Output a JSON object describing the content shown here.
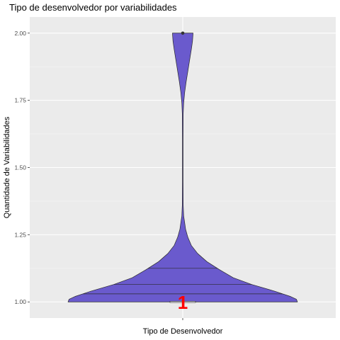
{
  "chart_data": {
    "type": "violin",
    "title": "Tipo de desenvolvedor por variabilidades",
    "xlabel": "Tipo de Desenvolvedor",
    "ylabel": "Quantidade de Variabilidades",
    "categories": [
      ""
    ],
    "ylim": [
      0.94,
      2.06
    ],
    "yticks": [
      1.0,
      1.25,
      1.5,
      1.75,
      2.0
    ],
    "ytick_labels": [
      "1.00",
      "1.25",
      "1.50",
      "1.75",
      "2.00"
    ],
    "grid": true,
    "violin": {
      "fill": "#6a5acd",
      "outline": "#2b2b2b",
      "density_profile": [
        {
          "y": 1.0,
          "half_width": 1.0
        },
        {
          "y": 1.01,
          "half_width": 0.99
        },
        {
          "y": 1.02,
          "half_width": 0.94
        },
        {
          "y": 1.04,
          "half_width": 0.8
        },
        {
          "y": 1.065,
          "half_width": 0.6
        },
        {
          "y": 1.09,
          "half_width": 0.44
        },
        {
          "y": 1.12,
          "half_width": 0.32
        },
        {
          "y": 1.15,
          "half_width": 0.21
        },
        {
          "y": 1.18,
          "half_width": 0.13
        },
        {
          "y": 1.21,
          "half_width": 0.075
        },
        {
          "y": 1.24,
          "half_width": 0.045
        },
        {
          "y": 1.27,
          "half_width": 0.025
        },
        {
          "y": 1.3,
          "half_width": 0.015
        },
        {
          "y": 1.32,
          "half_width": 0.008
        },
        {
          "y": 1.36,
          "half_width": 0.004
        },
        {
          "y": 1.45,
          "half_width": 0.003
        },
        {
          "y": 1.6,
          "half_width": 0.003
        },
        {
          "y": 1.7,
          "half_width": 0.004
        },
        {
          "y": 1.74,
          "half_width": 0.008
        },
        {
          "y": 1.78,
          "half_width": 0.017
        },
        {
          "y": 1.82,
          "half_width": 0.03
        },
        {
          "y": 1.86,
          "half_width": 0.045
        },
        {
          "y": 1.9,
          "half_width": 0.06
        },
        {
          "y": 1.94,
          "half_width": 0.075
        },
        {
          "y": 1.97,
          "half_width": 0.085
        },
        {
          "y": 2.0,
          "half_width": 0.09
        }
      ],
      "quantiles": [
        1.03,
        1.065,
        1.125
      ],
      "outliers": [
        2.0
      ],
      "boxplot": {
        "q1": 1.0,
        "median": 1.0,
        "q3": 1.0
      }
    },
    "annotation": {
      "text": "1",
      "y": 1.0,
      "color": "#ff0000"
    }
  }
}
